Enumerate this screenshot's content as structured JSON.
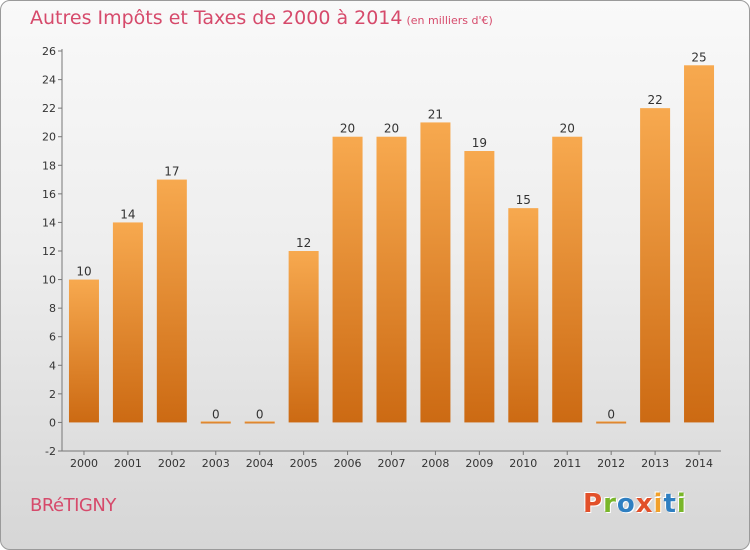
{
  "header": {
    "title": "Autres Impôts et Taxes de 2000 à 2014",
    "unit": "(en milliers d'€)"
  },
  "footer": {
    "town": "BRéTIGNY",
    "brand": "Proxiti",
    "brand_colors": [
      "#e2502a",
      "#79b62a",
      "#2f7fc1",
      "#e2502a",
      "#f1a02a",
      "#2f7fc1",
      "#79b62a"
    ]
  },
  "chart_data": {
    "type": "bar",
    "categories": [
      "2000",
      "2001",
      "2002",
      "2003",
      "2004",
      "2005",
      "2006",
      "2007",
      "2008",
      "2009",
      "2010",
      "2011",
      "2012",
      "2013",
      "2014"
    ],
    "values": [
      10,
      14,
      17,
      0,
      0,
      12,
      20,
      20,
      21,
      19,
      15,
      20,
      0,
      22,
      25
    ],
    "ylim": [
      -2,
      26
    ],
    "yticks": [
      -2,
      0,
      2,
      4,
      6,
      8,
      10,
      12,
      14,
      16,
      18,
      20,
      22,
      24,
      26
    ],
    "grid": false,
    "bar_color_top": "#f7a94f",
    "bar_color_bottom": "#cc6a13"
  }
}
